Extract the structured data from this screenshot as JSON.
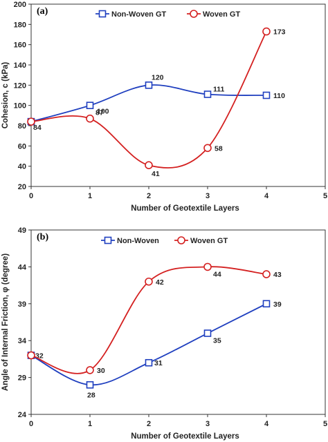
{
  "chart_data": [
    {
      "type": "line",
      "panel_label": "(a)",
      "xlabel": "Number of Geotextile Layers",
      "ylabel": "Cohesion, c  (kPa)",
      "xlim": [
        0,
        5
      ],
      "ylim": [
        20,
        200
      ],
      "xticks": [
        0,
        1,
        2,
        3,
        4,
        5
      ],
      "yticks": [
        20,
        40,
        60,
        80,
        100,
        120,
        140,
        160,
        180,
        200
      ],
      "legend_position": "top-center",
      "series": [
        {
          "name": "Non-Woven GT",
          "marker": "square",
          "color": "#1f3fbf",
          "x": [
            0,
            1,
            2,
            3,
            4
          ],
          "y": [
            84,
            100,
            120,
            111,
            110
          ],
          "labels": [
            "84",
            "100",
            "120",
            "111",
            "110"
          ]
        },
        {
          "name": "Woven GT",
          "marker": "circle",
          "color": "#d42020",
          "x": [
            0,
            1,
            2,
            3,
            4
          ],
          "y": [
            84,
            87,
            41,
            58,
            173
          ],
          "labels": [
            "",
            "87",
            "41",
            "58",
            "173"
          ]
        }
      ]
    },
    {
      "type": "line",
      "panel_label": "(b)",
      "xlabel": "Number of Geotextile Layers",
      "ylabel": "Angle of Internal Friction, φ  (degree)",
      "xlim": [
        0,
        5
      ],
      "ylim": [
        24,
        49
      ],
      "xticks": [
        0,
        1,
        2,
        3,
        4,
        5
      ],
      "yticks": [
        24,
        29,
        34,
        39,
        44,
        49
      ],
      "legend_position": "top-center",
      "series": [
        {
          "name": "Non-Woven",
          "marker": "square",
          "color": "#1f3fbf",
          "x": [
            0,
            1,
            2,
            3,
            4
          ],
          "y": [
            32,
            28,
            31,
            35,
            39
          ],
          "labels": [
            "32",
            "28",
            "31",
            "35",
            "39"
          ]
        },
        {
          "name": "Woven GT",
          "marker": "circle",
          "color": "#d42020",
          "x": [
            0,
            1,
            2,
            3,
            4
          ],
          "y": [
            32,
            30,
            42,
            44,
            43
          ],
          "labels": [
            "",
            "30",
            "42",
            "44",
            "43"
          ]
        }
      ]
    }
  ]
}
